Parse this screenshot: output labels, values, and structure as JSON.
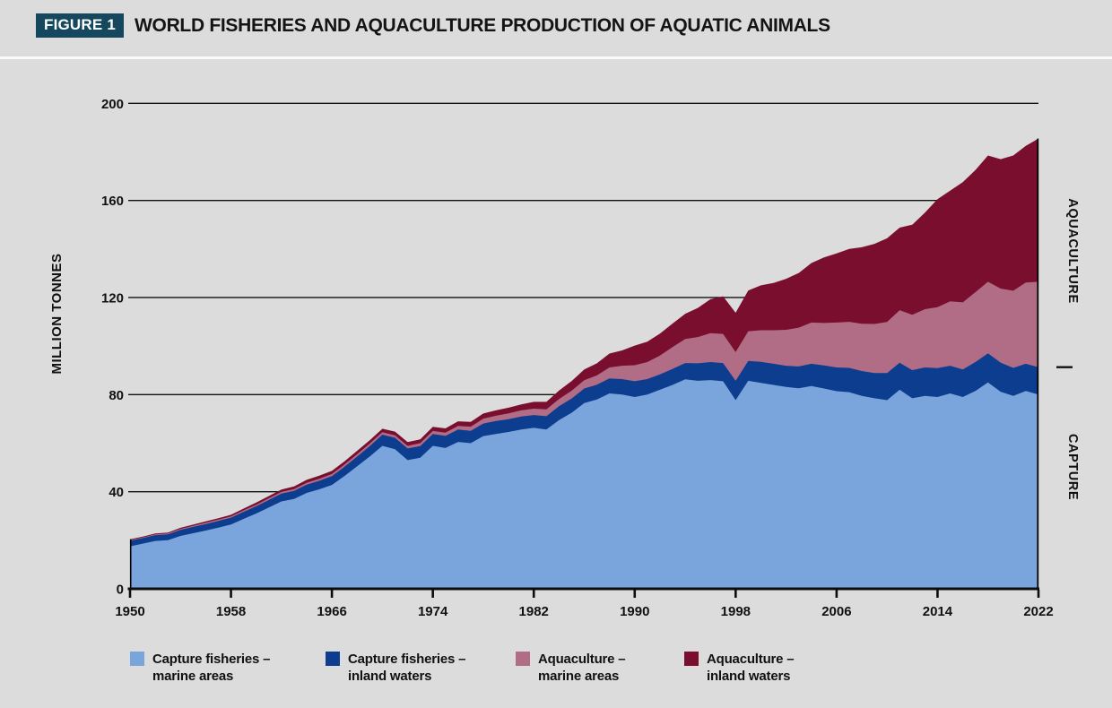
{
  "figure": {
    "badge": "FIGURE 1",
    "title": "WORLD FISHERIES AND AQUACULTURE PRODUCTION OF AQUATIC ANIMALS"
  },
  "side_labels": {
    "aquaculture": "AQUACULTURE",
    "capture": "CAPTURE"
  },
  "colors": {
    "background": "#dcdcdc",
    "separator": "#fafafa",
    "badge_bg": "#15485f",
    "badge_text": "#ffffff",
    "text": "#111111",
    "axis": "#111111"
  },
  "legend": [
    {
      "line1": "Capture fisheries –",
      "line2": "marine areas"
    },
    {
      "line1": "Capture fisheries –",
      "line2": "inland waters"
    },
    {
      "line1": "Aquaculture –",
      "line2": "marine areas"
    },
    {
      "line1": "Aquaculture –",
      "line2": "inland waters"
    }
  ],
  "chart_data": {
    "type": "area",
    "stacked": true,
    "title": "WORLD FISHERIES AND AQUACULTURE PRODUCTION OF AQUATIC ANIMALS",
    "ylabel": "MILLION TONNES",
    "unit": "million tonnes",
    "ylim": [
      0,
      200
    ],
    "yticks": [
      0,
      40,
      80,
      120,
      160,
      200
    ],
    "xticks": [
      1950,
      1958,
      1966,
      1974,
      1982,
      1990,
      1998,
      2006,
      2014,
      2022
    ],
    "years_start": 1950,
    "years_end": 2022,
    "grid": "horizontal",
    "legend_position": "bottom",
    "series": [
      {
        "name": "Capture fisheries – marine areas",
        "color": "#7aa5dc",
        "values": [
          17.5,
          18.6,
          19.7,
          20.0,
          21.8,
          22.9,
          24.0,
          25.2,
          26.5,
          28.8,
          31.0,
          33.5,
          36.0,
          37.0,
          39.5,
          41.0,
          42.8,
          46.5,
          50.5,
          54.5,
          58.9,
          57.5,
          53.0,
          54.0,
          58.9,
          58.0,
          60.5,
          60.0,
          62.9,
          63.8,
          64.6,
          65.6,
          66.3,
          65.6,
          69.5,
          72.5,
          76.5,
          78.0,
          80.5,
          80.0,
          79.0,
          80.0,
          82.0,
          84.0,
          86.3,
          85.7,
          86.0,
          85.5,
          77.7,
          85.7,
          84.8,
          84.0,
          83.2,
          82.6,
          83.5,
          82.5,
          81.4,
          81.0,
          79.5,
          78.5,
          77.7,
          82.0,
          78.5,
          79.5,
          79.0,
          80.5,
          79.0,
          81.5,
          85.0,
          81.2,
          79.5,
          81.5,
          80.0
        ]
      },
      {
        "name": "Capture fisheries – inland waters",
        "color": "#0d3d8f",
        "values": [
          2.3,
          2.3,
          2.4,
          2.4,
          2.5,
          2.6,
          2.7,
          2.8,
          2.8,
          2.9,
          3.0,
          3.1,
          3.2,
          3.3,
          3.4,
          3.5,
          3.6,
          3.8,
          4.0,
          4.3,
          4.6,
          4.7,
          4.8,
          4.8,
          4.9,
          5.0,
          5.1,
          5.1,
          5.2,
          5.3,
          5.3,
          5.4,
          5.3,
          5.5,
          5.7,
          5.9,
          6.0,
          6.1,
          6.2,
          6.4,
          6.5,
          6.4,
          6.3,
          6.6,
          6.7,
          7.2,
          7.4,
          7.5,
          8.0,
          8.2,
          8.7,
          8.7,
          8.7,
          9.0,
          9.2,
          9.5,
          9.8,
          10.0,
          10.2,
          10.4,
          11.2,
          11.1,
          11.6,
          11.7,
          11.9,
          11.4,
          11.4,
          11.9,
          12.0,
          12.0,
          11.5,
          11.2,
          11.3
        ]
      },
      {
        "name": "Aquaculture – marine areas",
        "color": "#b16d86",
        "values": [
          0.3,
          0.3,
          0.35,
          0.4,
          0.4,
          0.45,
          0.5,
          0.5,
          0.55,
          0.6,
          0.65,
          0.7,
          0.7,
          0.75,
          0.8,
          0.85,
          0.9,
          0.9,
          0.95,
          1.0,
          1.0,
          1.05,
          1.1,
          1.2,
          1.2,
          1.3,
          1.5,
          1.7,
          2.0,
          2.2,
          2.4,
          2.5,
          2.6,
          2.8,
          3.0,
          3.2,
          3.4,
          3.8,
          4.5,
          5.5,
          6.6,
          7.0,
          7.8,
          9.0,
          9.9,
          10.8,
          11.9,
          12.0,
          11.8,
          12.2,
          13.0,
          13.8,
          14.8,
          16.0,
          17.0,
          17.5,
          18.5,
          19.0,
          19.5,
          20.2,
          21.0,
          21.7,
          22.8,
          24.0,
          25.1,
          26.5,
          27.6,
          28.8,
          29.5,
          30.5,
          31.8,
          33.5,
          35.2
        ]
      },
      {
        "name": "Aquaculture – inland waters",
        "color": "#7a0e2e",
        "values": [
          0.3,
          0.3,
          0.35,
          0.4,
          0.45,
          0.5,
          0.55,
          0.6,
          0.65,
          0.75,
          0.85,
          0.9,
          1.0,
          1.1,
          1.2,
          1.25,
          1.3,
          1.35,
          1.4,
          1.4,
          1.45,
          1.5,
          1.55,
          1.6,
          1.7,
          1.8,
          1.9,
          2.0,
          2.1,
          2.2,
          2.3,
          2.5,
          2.8,
          3.1,
          3.5,
          4.0,
          4.5,
          5.0,
          5.7,
          6.3,
          8.1,
          8.4,
          9.0,
          9.7,
          10.4,
          12.0,
          14.0,
          15.5,
          16.2,
          16.8,
          18.5,
          19.5,
          21.0,
          22.5,
          24.5,
          27.0,
          28.5,
          30.0,
          31.5,
          33.0,
          34.5,
          34.0,
          37.1,
          39.8,
          44.5,
          45.6,
          49.5,
          50.3,
          52.0,
          53.3,
          55.7,
          56.3,
          59.0
        ]
      }
    ]
  }
}
